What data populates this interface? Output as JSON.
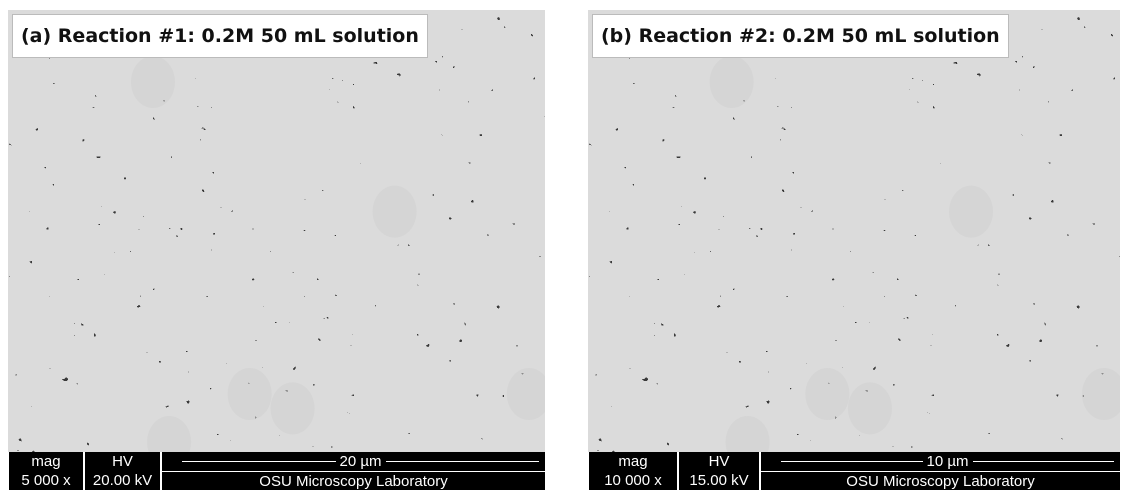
{
  "panels": [
    {
      "label": "(a) Reaction #1: 0.2M 50 mL solution",
      "mag_label": "mag",
      "mag": "5 000 x",
      "hv_label": "HV",
      "hv": "20.00 kV",
      "scale": "20 µm",
      "lab": "OSU Microscopy Laboratory"
    },
    {
      "label": "(b) Reaction #2: 0.2M 50 mL solution",
      "mag_label": "mag",
      "mag": "10 000 x",
      "hv_label": "HV",
      "hv": "15.00 kV",
      "scale": "10 µm",
      "lab": "OSU Microscopy Laboratory"
    }
  ]
}
